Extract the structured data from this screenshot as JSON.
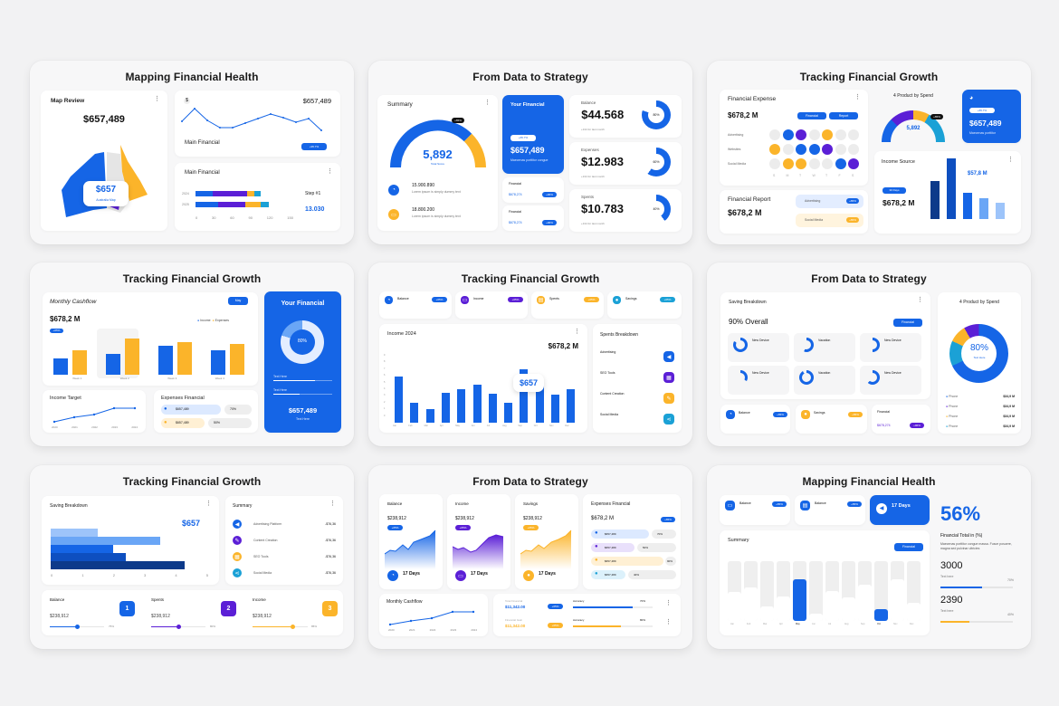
{
  "colors": {
    "blue": "#1565e6",
    "purple": "#5b1fd6",
    "orange": "#fbb42a",
    "teal": "#1ba1d6",
    "navy": "#0d3a8a",
    "light_blue": "#6aa6f6"
  },
  "slides": [
    {
      "title": "Mapping Financial Health",
      "map_review": {
        "title": "Map Review",
        "value": "$657,489",
        "badge_value": "$657",
        "badge_label": "Australia Map"
      },
      "line_card": {
        "value": "$657,489",
        "label": "Main Financial",
        "badge": "+95.7%",
        "points": [
          50,
          75,
          40,
          22,
          22,
          34,
          46,
          58,
          44,
          52,
          28
        ]
      },
      "stacked_card": {
        "title": "Main Financial",
        "rows": [
          {
            "label": "2024",
            "segments": [
              22,
              45,
              10,
              8
            ]
          },
          {
            "label": "2025",
            "segments": [
              30,
              35,
              20,
              11
            ]
          }
        ],
        "axis": [
          "0",
          "30",
          "60",
          "90",
          "120",
          "150"
        ],
        "step_label": "Step #1",
        "step_value": "13.030"
      }
    },
    {
      "title": "From Data to Strategy",
      "summary": {
        "title": "Summary",
        "value": "5,892",
        "sub": "Total Score",
        "badge": "+65%",
        "items": [
          {
            "value": "15.900.890",
            "text": "Lorem ipsum is simply dummy text"
          },
          {
            "value": "18.800.200",
            "text": "Lorem ipsum is simply dummy text"
          }
        ]
      },
      "your_financial": {
        "title": "Your Financial",
        "badge": "+65.7%",
        "value": "$657,489",
        "text": "Maecenas porttitor congue"
      },
      "mini": [
        {
          "label": "Financial",
          "value": "$678,274",
          "badge": "+96%"
        },
        {
          "label": "Financial",
          "value": "$678,274",
          "badge": "+96%"
        }
      ],
      "stats": [
        {
          "label": "Balance",
          "value": "$44.568",
          "note": "+134 for last month",
          "pct": "80%",
          "deg": 288
        },
        {
          "label": "Expenses",
          "value": "$12.983",
          "note": "+134 for last month",
          "pct": "60%",
          "deg": 216
        },
        {
          "label": "Spents",
          "value": "$10.783",
          "note": "+134 for last month",
          "pct": "40%",
          "deg": 144
        }
      ]
    },
    {
      "title": "Tracking Financial Growth",
      "expense": {
        "title": "Financial Expense",
        "value": "$678,2 M",
        "btn1": "Financial",
        "btn2": "Report",
        "rows": [
          "Advertising",
          "Websites",
          "Social Media"
        ],
        "days": [
          "S",
          "M",
          "T",
          "W",
          "T",
          "F",
          "S"
        ],
        "grid": [
          [
            "g",
            "b",
            "p",
            "g",
            "o",
            "g",
            "g"
          ],
          [
            "o",
            "g",
            "b",
            "b",
            "p",
            "g",
            "g"
          ],
          [
            "g",
            "o",
            "o",
            "g",
            "g",
            "b",
            "p"
          ]
        ]
      },
      "report": {
        "title": "Financial Report",
        "value": "$678,2 M",
        "tags": [
          {
            "label": "Advertising",
            "badge": "+65%"
          },
          {
            "label": "Social Media",
            "badge": "+65%"
          }
        ]
      },
      "product": {
        "title": "4 Product by Spend",
        "value": "5,892",
        "badge": "+65%"
      },
      "blue_card": {
        "badge": "+65.7%",
        "value": "$657,489",
        "text": "Maecenas porttitor"
      },
      "income_source": {
        "title": "Income Source",
        "badge": "30 Days",
        "value": "$678,2 M",
        "highlight": "$57,8 M",
        "bars": [
          62,
          88,
          44,
          34,
          28
        ]
      }
    },
    {
      "title": "Tracking Financial Growth",
      "cashflow": {
        "title": "Monthly Cashflow",
        "value": "$678,2 M",
        "badge": "+65%",
        "btn": "May",
        "legend": [
          "Income",
          "Expenses"
        ],
        "weeks": [
          {
            "label": "Week 1",
            "income": 3,
            "expenses": 5
          },
          {
            "label": "Week 2",
            "income": 2.5,
            "expenses": 4.4
          },
          {
            "label": "Week 3",
            "income": 3.5,
            "expenses": 4
          },
          {
            "label": "Week 4",
            "income": 3,
            "expenses": 3.5
          }
        ]
      },
      "income_target": {
        "title": "Income Target",
        "years": [
          "2020",
          "2021",
          "2022",
          "2023",
          "2024"
        ],
        "points": [
          20,
          30,
          35,
          50,
          50
        ]
      },
      "expenses_financial": {
        "title": "Expenses Financial",
        "rows": [
          {
            "value": "$657,489",
            "pct": "70%"
          },
          {
            "value": "$657,489",
            "pct": "50%"
          }
        ]
      },
      "your_financial": {
        "title": "Your Financial",
        "pct": "80%",
        "sub": "Text Here",
        "lines": [
          "Text Here",
          "Text Here"
        ],
        "value": "$657,489",
        "value_sub": "Text Here"
      }
    },
    {
      "title": "Tracking Financial Growth",
      "kpis": [
        {
          "label": "Balance",
          "badge": "+65%"
        },
        {
          "label": "Income",
          "badge": "+65%"
        },
        {
          "label": "Spents",
          "badge": "+65%"
        },
        {
          "label": "Savings",
          "badge": "+65%"
        }
      ],
      "income": {
        "title": "Income 2024",
        "value": "$678,2 M",
        "tooltip": "$657",
        "months": [
          "Jan",
          "Feb",
          "Mar",
          "Apr",
          "May",
          "Jun",
          "Jul",
          "Aug",
          "Sep",
          "Oct",
          "Nov",
          "Dec"
        ],
        "values": [
          7,
          3,
          2,
          4.5,
          5,
          5.7,
          4.4,
          3,
          8,
          6,
          4.2,
          5
        ],
        "yticks": [
          "9",
          "8",
          "7",
          "6",
          "5",
          "4",
          "3",
          "2",
          "1",
          "0"
        ]
      },
      "breakdown": {
        "title": "Spents Breakdown",
        "items": [
          "Advertising",
          "SEO Tools",
          "Content Creation",
          "Social Media"
        ]
      }
    },
    {
      "title": "From Data to Strategy",
      "saving": {
        "title": "Saving Breakdown",
        "overall": "90% Overall",
        "btn": "Financial",
        "items": [
          {
            "label": "New Device",
            "deg": 300
          },
          {
            "label": "Vacation",
            "deg": 200
          },
          {
            "label": "New Device",
            "deg": 180
          },
          {
            "label": "New Device",
            "deg": 120
          },
          {
            "label": "Vacation",
            "deg": 330
          },
          {
            "label": "New Device",
            "deg": 220
          }
        ]
      },
      "bottom": [
        {
          "label": "Balance",
          "badge": "+65%"
        },
        {
          "label": "Savings",
          "badge": "+65%"
        },
        {
          "label": "Financial",
          "value": "$678,274",
          "badge": "+96%"
        }
      ],
      "product": {
        "title": "4 Product by Spend",
        "pct": "80%",
        "sub": "Text Here",
        "legend": [
          {
            "label": "Phone",
            "value": "$34,9 M"
          },
          {
            "label": "Phone",
            "value": "$34,9 M"
          },
          {
            "label": "Phone",
            "value": "$34,9 M"
          },
          {
            "label": "Phone",
            "value": "$34,9 M"
          }
        ]
      }
    },
    {
      "title": "Tracking Financial Growth",
      "saving": {
        "title": "Saving Breakdown",
        "value": "$657",
        "bars": [
          1.5,
          3.5,
          2,
          2.4,
          4.3
        ],
        "axis": [
          "0",
          "1",
          "2",
          "3",
          "4",
          "5"
        ]
      },
      "summary": {
        "title": "Summary",
        "items": [
          {
            "label": "Advertising Platform",
            "value": "-$76,36"
          },
          {
            "label": "Content Creation",
            "value": "-$76,36"
          },
          {
            "label": "SEO Tools",
            "value": "-$76,36"
          },
          {
            "label": "Social Media",
            "value": "-$76,36"
          }
        ]
      },
      "steps": [
        {
          "label": "Balance",
          "value": "$238,912",
          "num": "1",
          "pct": "75%"
        },
        {
          "label": "Spents",
          "value": "$238,912",
          "num": "2",
          "pct": "80%"
        },
        {
          "label": "Income",
          "value": "$238,912",
          "num": "3",
          "pct": "85%"
        }
      ]
    },
    {
      "title": "From Data to Strategy",
      "areas": [
        {
          "label": "Balance",
          "value": "$238,912",
          "badge": "+65%",
          "days": "17 Days"
        },
        {
          "label": "Income",
          "value": "$238,912",
          "badge": "+65%",
          "days": "17 Days"
        },
        {
          "label": "Savings",
          "value": "$238,912",
          "badge": "+65%",
          "days": "17 Days"
        }
      ],
      "expenses": {
        "title": "Expenses Financial",
        "value": "$678,2 M",
        "badge": "+65%",
        "rows": [
          {
            "value": "$657,489",
            "pct": "70%"
          },
          {
            "value": "$657,489",
            "pct": "50%"
          },
          {
            "value": "$657,489",
            "pct": "90%"
          },
          {
            "value": "$657,489",
            "pct": "40%"
          }
        ]
      },
      "cashflow": {
        "title": "Monthly Cashflow",
        "years": [
          "2020",
          "2021",
          "2022",
          "2023",
          "2024"
        ]
      },
      "accuracy": [
        {
          "label": "Total Financial",
          "value": "$11,342.00",
          "badge": "+65%",
          "acc": "Accuracy",
          "pct": "70%"
        },
        {
          "label": "Financial Gain",
          "value": "$11,342.00",
          "badge": "+65%",
          "acc": "Accuracy",
          "pct": "80%"
        }
      ]
    },
    {
      "title": "Mapping Financial Health",
      "kpis": [
        {
          "label": "Balance",
          "badge": "+65%"
        },
        {
          "label": "Balance",
          "badge": "+65%"
        }
      ],
      "days": {
        "value": "17 Days"
      },
      "summary": {
        "title": "Summary",
        "btn": "Financial",
        "months": [
          "Jan",
          "Feb",
          "Mar",
          "Apr",
          "May",
          "Jun",
          "Jul",
          "Aug",
          "Sep",
          "Oct",
          "Nov",
          "Dec"
        ],
        "values": [
          48,
          56,
          25,
          41,
          70,
          12,
          50,
          40,
          60,
          20,
          70,
          30
        ],
        "active": [
          4,
          9
        ]
      },
      "total": {
        "pct": "56%",
        "title": "Financial Total in (%)",
        "text": "Maecenas porttitor congue massa. Fusce posuere, magna sed pulvinar ultricies",
        "v1": "3000",
        "v1_label": "Text here",
        "v1_pct": "70%",
        "v2": "2390",
        "v2_label": "Text here",
        "v2_pct": "40%"
      }
    }
  ]
}
